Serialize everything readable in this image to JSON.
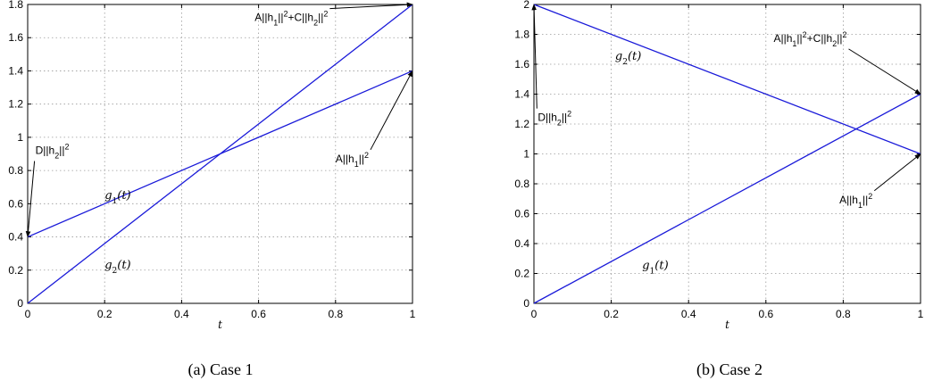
{
  "chart_data": [
    {
      "type": "line",
      "caption": "(a)  Case 1",
      "xlabel": "t",
      "ylabel": "",
      "xlim": [
        0,
        1
      ],
      "ylim": [
        0,
        1.8
      ],
      "xticks": [
        "0",
        "0.2",
        "0.4",
        "0.6",
        "0.8",
        "1"
      ],
      "yticks": [
        "0",
        "0.2",
        "0.4",
        "0.6",
        "0.8",
        "1",
        "1.2",
        "1.4",
        "1.6",
        "1.8"
      ],
      "grid": true,
      "series": [
        {
          "name": "g1(t)",
          "x": [
            0,
            1
          ],
          "y": [
            0.4,
            1.4
          ]
        },
        {
          "name": "g2(t)",
          "x": [
            0,
            1
          ],
          "y": [
            0,
            1.8
          ]
        }
      ],
      "curve_labels": [
        {
          "base": "g",
          "sub": "1",
          "tail": "(t)",
          "x": 0.2,
          "y": 0.63
        },
        {
          "base": "g",
          "sub": "2",
          "tail": "(t)",
          "x": 0.2,
          "y": 0.21
        }
      ],
      "annotations": [
        {
          "parts": [
            [
              "D||h",
              false
            ],
            [
              "2",
              "sub"
            ],
            [
              "||",
              false
            ],
            [
              "2",
              "sup"
            ]
          ],
          "text_x": 0.02,
          "text_y": 0.9,
          "point_x": 0.0,
          "point_y": 0.4,
          "anchor": "start"
        },
        {
          "parts": [
            [
              "A||h",
              false
            ],
            [
              "1",
              "sub"
            ],
            [
              "||",
              false
            ],
            [
              "2",
              "sup"
            ],
            [
              "+C||h",
              false
            ],
            [
              "2",
              "sub"
            ],
            [
              "||",
              false
            ],
            [
              "2",
              "sup"
            ]
          ],
          "text_x": 0.59,
          "text_y": 1.7,
          "point_x": 1.0,
          "point_y": 1.8,
          "anchor": "start"
        },
        {
          "parts": [
            [
              "A||h",
              false
            ],
            [
              "1",
              "sub"
            ],
            [
              "||",
              false
            ],
            [
              "2",
              "sup"
            ]
          ],
          "text_x": 0.8,
          "text_y": 0.85,
          "point_x": 1.0,
          "point_y": 1.4,
          "anchor": "start"
        }
      ]
    },
    {
      "type": "line",
      "caption": "(b)  Case 2",
      "xlabel": "t",
      "ylabel": "",
      "xlim": [
        0,
        1
      ],
      "ylim": [
        0,
        2
      ],
      "xticks": [
        "0",
        "0.2",
        "0.4",
        "0.6",
        "0.8",
        "1"
      ],
      "yticks": [
        "0",
        "0.2",
        "0.4",
        "0.6",
        "0.8",
        "1",
        "1.2",
        "1.4",
        "1.6",
        "1.8",
        "2"
      ],
      "grid": true,
      "series": [
        {
          "name": "g1(t)",
          "x": [
            0,
            1
          ],
          "y": [
            0,
            1.4
          ]
        },
        {
          "name": "g2(t)",
          "x": [
            0,
            1
          ],
          "y": [
            2,
            1
          ]
        }
      ],
      "curve_labels": [
        {
          "base": "g",
          "sub": "2",
          "tail": "(t)",
          "x": 0.21,
          "y": 1.63
        },
        {
          "base": "g",
          "sub": "1",
          "tail": "(t)",
          "x": 0.28,
          "y": 0.23
        }
      ],
      "annotations": [
        {
          "parts": [
            [
              "D||h",
              false
            ],
            [
              "2",
              "sub"
            ],
            [
              "||",
              false
            ],
            [
              "2",
              "sup"
            ]
          ],
          "text_x": 0.01,
          "text_y": 1.22,
          "point_x": 0.0,
          "point_y": 2.0,
          "anchor": "start"
        },
        {
          "parts": [
            [
              "A||h",
              false
            ],
            [
              "1",
              "sub"
            ],
            [
              "||",
              false
            ],
            [
              "2",
              "sup"
            ],
            [
              "+C||h",
              false
            ],
            [
              "2",
              "sub"
            ],
            [
              "||",
              false
            ],
            [
              "2",
              "sup"
            ]
          ],
          "text_x": 0.62,
          "text_y": 1.75,
          "point_x": 1.0,
          "point_y": 1.4,
          "anchor": "start"
        },
        {
          "parts": [
            [
              "A||h",
              false
            ],
            [
              "1",
              "sub"
            ],
            [
              "||",
              false
            ],
            [
              "2",
              "sup"
            ]
          ],
          "text_x": 0.79,
          "text_y": 0.67,
          "point_x": 1.0,
          "point_y": 1.0,
          "anchor": "start"
        }
      ]
    }
  ]
}
